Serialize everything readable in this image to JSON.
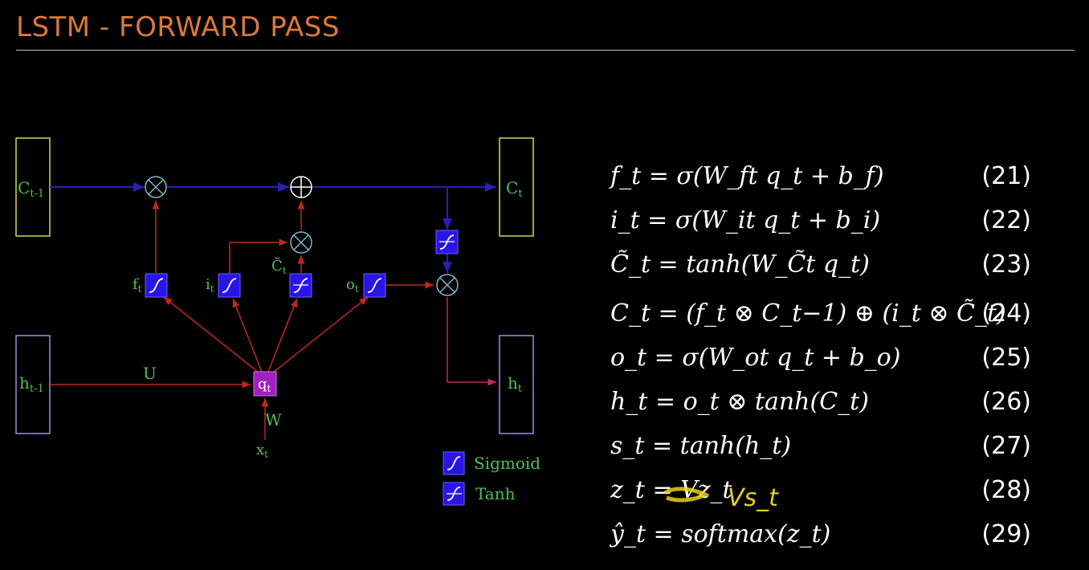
{
  "title": "LSTM - FORWARD PASS",
  "colors": {
    "title": "#d9793a",
    "cell_box": "#d8d84a",
    "hidden_box": "#9a90d8",
    "blue_line": "#2a1fb0",
    "red_line": "#c0281e",
    "label": "#4ec34e",
    "gate": "#2a15e8",
    "q_node": "#a020c0",
    "circle": "#7fb7c9"
  },
  "diagram": {
    "c_prev": "C",
    "c_prev_sub": "t-1",
    "c_next": "C",
    "c_next_sub": "t",
    "h_prev": "h",
    "h_prev_sub": "t-1",
    "h_next": "h",
    "h_next_sub": "t",
    "f_gate": "f",
    "i_gate": "i",
    "c_tilde": "C̃",
    "o_gate": "o",
    "gate_sub": "t",
    "q": "q",
    "q_sub": "t",
    "x": "x",
    "x_sub": "t",
    "u_label": "U",
    "w_label": "W",
    "legend_sigmoid": "Sigmoid",
    "legend_tanh": "Tanh"
  },
  "equations": [
    {
      "text": "f_t = σ(W_ft q_t + b_f)",
      "num": "(21)"
    },
    {
      "text": "i_t = σ(W_it q_t + b_i)",
      "num": "(22)"
    },
    {
      "text": "C̃_t = tanh(W_C̃t q_t)",
      "num": "(23)"
    },
    {
      "text": "C_t = (f_t ⊗ C_t−1) ⊕ (i_t ⊗ C̃_t)",
      "num": "(24)"
    },
    {
      "text": "o_t = σ(W_ot q_t + b_o)",
      "num": "(25)"
    },
    {
      "text": "h_t = o_t ⊗ tanh(C_t)",
      "num": "(26)"
    },
    {
      "text": "s_t = tanh(h_t)",
      "num": "(27)"
    },
    {
      "text": "z_t = Vz_t",
      "num": "(28)"
    },
    {
      "text": "ŷ_t = softmax(z_t)",
      "num": "(29)"
    }
  ],
  "annotation": "Vs_t"
}
